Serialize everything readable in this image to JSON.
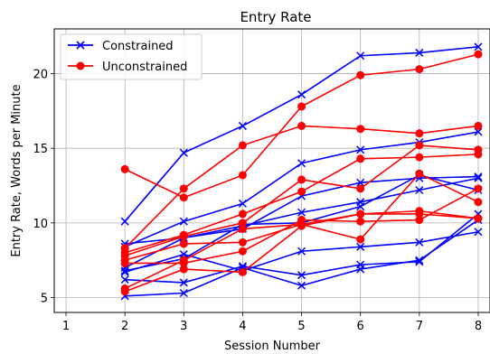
{
  "chart_data": {
    "type": "line",
    "title": "Entry Rate",
    "xlabel": "Session Number",
    "ylabel": "Entry Rate, Words per Minute",
    "xlim": [
      0.8,
      8.2
    ],
    "ylim": [
      4,
      23
    ],
    "xticks": [
      1,
      2,
      3,
      4,
      5,
      6,
      7,
      8
    ],
    "yticks": [
      5,
      10,
      15,
      20
    ],
    "grid": true,
    "legend_position": "top-left",
    "groups": [
      {
        "name": "Constrained",
        "color": "#0000ff",
        "marker": "x"
      },
      {
        "name": "Unconstrained",
        "color": "#ff0000",
        "marker": "o"
      }
    ],
    "x": [
      2,
      3,
      4,
      5,
      6,
      7,
      8
    ],
    "series": [
      {
        "group": 0,
        "values": [
          10.1,
          14.7,
          16.5,
          18.6,
          21.2,
          21.4,
          21.8
        ]
      },
      {
        "group": 0,
        "values": [
          8.4,
          10.1,
          11.3,
          14.0,
          14.9,
          15.4,
          16.1
        ]
      },
      {
        "group": 0,
        "values": [
          8.6,
          9.0,
          9.6,
          11.8,
          12.7,
          13.0,
          13.1
        ]
      },
      {
        "group": 0,
        "values": [
          7.0,
          9.0,
          9.8,
          10.7,
          11.4,
          12.2,
          13.0
        ]
      },
      {
        "group": 0,
        "values": [
          6.8,
          7.6,
          9.9,
          10.0,
          11.1,
          13.2,
          12.2
        ]
      },
      {
        "group": 0,
        "values": [
          6.7,
          7.9,
          6.8,
          8.1,
          8.4,
          8.7,
          9.4
        ]
      },
      {
        "group": 0,
        "values": [
          6.2,
          6.0,
          7.1,
          6.5,
          7.2,
          7.4,
          10.6
        ]
      },
      {
        "group": 0,
        "values": [
          5.1,
          5.3,
          7.0,
          5.8,
          6.9,
          7.5,
          10.2
        ]
      },
      {
        "group": 1,
        "values": [
          13.6,
          11.7,
          13.2,
          17.8,
          19.9,
          20.3,
          21.3
        ]
      },
      {
        "group": 1,
        "values": [
          8.3,
          12.3,
          15.2,
          16.5,
          16.3,
          16.0,
          16.5
        ]
      },
      {
        "group": 1,
        "values": [
          8.0,
          9.2,
          10.6,
          12.1,
          14.3,
          14.4,
          14.6
        ]
      },
      {
        "group": 1,
        "values": [
          7.8,
          9.1,
          10.0,
          12.9,
          12.3,
          15.2,
          14.9
        ]
      },
      {
        "group": 1,
        "values": [
          7.5,
          8.6,
          8.7,
          9.9,
          10.6,
          10.8,
          10.3
        ]
      },
      {
        "group": 1,
        "values": [
          7.3,
          7.3,
          8.1,
          10.2,
          10.1,
          10.2,
          12.3
        ]
      },
      {
        "group": 1,
        "values": [
          5.6,
          7.5,
          9.6,
          9.9,
          8.9,
          13.3,
          11.4
        ]
      },
      {
        "group": 1,
        "values": [
          5.4,
          6.9,
          6.7,
          9.8,
          10.6,
          10.6,
          10.3
        ]
      }
    ]
  }
}
